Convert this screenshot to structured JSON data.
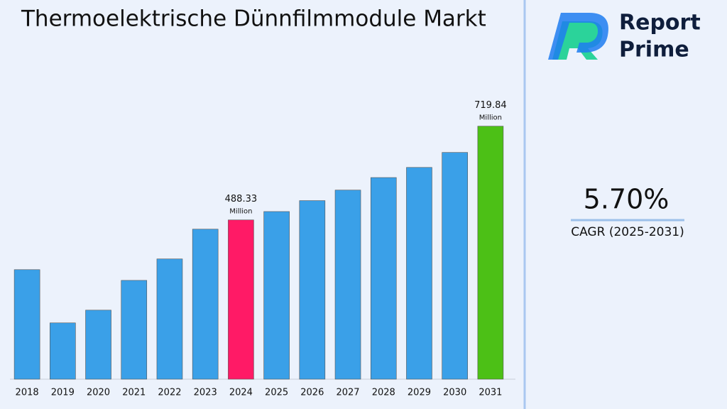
{
  "chart_data": {
    "type": "bar",
    "title": "Thermoelektrische Dünnfilmmodule Markt",
    "categories": [
      "2018",
      "2019",
      "2020",
      "2021",
      "2022",
      "2023",
      "2024",
      "2025",
      "2026",
      "2027",
      "2028",
      "2029",
      "2030",
      "2031"
    ],
    "values": [
      365.5,
      234,
      265.5,
      339,
      392,
      465.5,
      488.33,
      509,
      536,
      562,
      593,
      618,
      655,
      719.84
    ],
    "colors": [
      "#3aa0e8",
      "#3aa0e8",
      "#3aa0e8",
      "#3aa0e8",
      "#3aa0e8",
      "#3aa0e8",
      "#ff1a66",
      "#3aa0e8",
      "#3aa0e8",
      "#3aa0e8",
      "#3aa0e8",
      "#3aa0e8",
      "#3aa0e8",
      "#4cc016"
    ],
    "labeled": [
      6,
      13
    ],
    "unit": "Million",
    "ylim": [
      95,
      800
    ],
    "cagr": "5.70%",
    "cagr_label": "CAGR (2025-2031)",
    "brand": [
      "Report",
      "Prime"
    ]
  }
}
